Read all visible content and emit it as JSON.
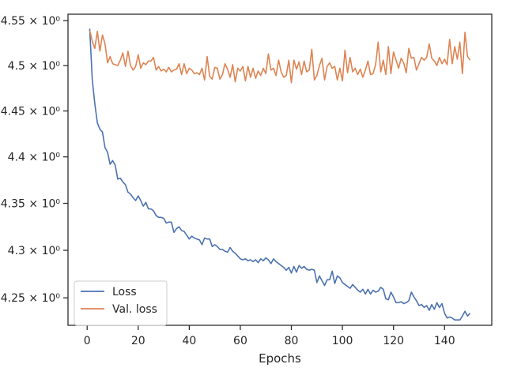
{
  "chart_data": {
    "type": "line",
    "title": "",
    "xlabel": "Epochs",
    "ylabel": "",
    "xlim": [
      -7.5,
      158.5
    ],
    "ylim": [
      4.2214,
      4.5572
    ],
    "log_y": true,
    "grid": false,
    "legend_placement": "lower-left",
    "x_ticks": [
      {
        "value": 0,
        "label": "0"
      },
      {
        "value": 20,
        "label": "20"
      },
      {
        "value": 40,
        "label": "40"
      },
      {
        "value": 60,
        "label": "60"
      },
      {
        "value": 80,
        "label": "80"
      },
      {
        "value": 100,
        "label": "100"
      },
      {
        "value": 120,
        "label": "120"
      },
      {
        "value": 140,
        "label": "140"
      }
    ],
    "y_ticks": [
      {
        "value": 4.25,
        "label": "4.25 × 10⁰"
      },
      {
        "value": 4.3,
        "label": "4.3 × 10⁰"
      },
      {
        "value": 4.35,
        "label": "4.35 × 10⁰"
      },
      {
        "value": 4.4,
        "label": "4.4 × 10⁰"
      },
      {
        "value": 4.45,
        "label": "4.45 × 10⁰"
      },
      {
        "value": 4.5,
        "label": "4.5 × 10⁰"
      },
      {
        "value": 4.55,
        "label": "4.55 × 10⁰"
      }
    ],
    "series": [
      {
        "name": "Loss",
        "color": "#4c72b0",
        "x": [
          1,
          2,
          3,
          4,
          5,
          6,
          7,
          8,
          9,
          10,
          11,
          12,
          13,
          14,
          15,
          16,
          17,
          18,
          19,
          20,
          21,
          22,
          23,
          24,
          25,
          26,
          27,
          28,
          29,
          30,
          31,
          32,
          33,
          34,
          35,
          36,
          37,
          38,
          39,
          40,
          41,
          42,
          43,
          44,
          45,
          46,
          47,
          48,
          49,
          50,
          51,
          52,
          53,
          54,
          55,
          56,
          57,
          58,
          59,
          60,
          61,
          62,
          63,
          64,
          65,
          66,
          67,
          68,
          69,
          70,
          71,
          72,
          73,
          74,
          75,
          76,
          77,
          78,
          79,
          80,
          81,
          82,
          83,
          84,
          85,
          86,
          87,
          88,
          89,
          90,
          91,
          92,
          93,
          94,
          95,
          96,
          97,
          98,
          99,
          100,
          101,
          102,
          103,
          104,
          105,
          106,
          107,
          108,
          109,
          110,
          111,
          112,
          113,
          114,
          115,
          116,
          117,
          118,
          119,
          120,
          121,
          122,
          123,
          124,
          125,
          126,
          127,
          128,
          129,
          130,
          131,
          132,
          133,
          134,
          135,
          136,
          137,
          138,
          139,
          140,
          141,
          142,
          143,
          144,
          145,
          146,
          147,
          148,
          149,
          150
        ],
        "values": [
          4.541,
          4.485,
          4.458,
          4.437,
          4.43,
          4.427,
          4.41,
          4.405,
          4.392,
          4.396,
          4.391,
          4.376,
          4.377,
          4.373,
          4.37,
          4.362,
          4.36,
          4.356,
          4.353,
          4.358,
          4.353,
          4.347,
          4.351,
          4.344,
          4.344,
          4.342,
          4.337,
          4.335,
          4.335,
          4.334,
          4.329,
          4.33,
          4.33,
          4.319,
          4.323,
          4.325,
          4.321,
          4.32,
          4.316,
          4.312,
          4.315,
          4.313,
          4.312,
          4.311,
          4.306,
          4.313,
          4.312,
          4.312,
          4.304,
          4.306,
          4.304,
          4.301,
          4.301,
          4.299,
          4.298,
          4.303,
          4.299,
          4.297,
          4.294,
          4.291,
          4.29,
          4.291,
          4.289,
          4.29,
          4.288,
          4.29,
          4.287,
          4.291,
          4.289,
          4.292,
          4.29,
          4.286,
          4.291,
          4.288,
          4.286,
          4.284,
          4.282,
          4.279,
          4.282,
          4.276,
          4.283,
          4.277,
          4.284,
          4.281,
          4.283,
          4.28,
          4.279,
          4.28,
          4.279,
          4.266,
          4.273,
          4.268,
          4.263,
          4.269,
          4.269,
          4.278,
          4.265,
          4.273,
          4.271,
          4.266,
          4.264,
          4.262,
          4.26,
          4.264,
          4.261,
          4.258,
          4.256,
          4.259,
          4.254,
          4.259,
          4.254,
          4.258,
          4.256,
          4.257,
          4.261,
          4.259,
          4.249,
          4.248,
          4.256,
          4.251,
          4.245,
          4.245,
          4.246,
          4.244,
          4.245,
          4.247,
          4.256,
          4.251,
          4.247,
          4.242,
          4.243,
          4.24,
          4.242,
          4.237,
          4.243,
          4.238,
          4.245,
          4.24,
          4.244,
          4.234,
          4.229,
          4.23,
          4.229,
          4.227,
          4.227,
          4.227,
          4.231,
          4.236,
          4.231,
          4.234
        ]
      },
      {
        "name": "Val. loss",
        "color": "#dd8452",
        "x": [
          1,
          2,
          3,
          4,
          5,
          6,
          7,
          8,
          9,
          10,
          11,
          12,
          13,
          14,
          15,
          16,
          17,
          18,
          19,
          20,
          21,
          22,
          23,
          24,
          25,
          26,
          27,
          28,
          29,
          30,
          31,
          32,
          33,
          34,
          35,
          36,
          37,
          38,
          39,
          40,
          41,
          42,
          43,
          44,
          45,
          46,
          47,
          48,
          49,
          50,
          51,
          52,
          53,
          54,
          55,
          56,
          57,
          58,
          59,
          60,
          61,
          62,
          63,
          64,
          65,
          66,
          67,
          68,
          69,
          70,
          71,
          72,
          73,
          74,
          75,
          76,
          77,
          78,
          79,
          80,
          81,
          82,
          83,
          84,
          85,
          86,
          87,
          88,
          89,
          90,
          91,
          92,
          93,
          94,
          95,
          96,
          97,
          98,
          99,
          100,
          101,
          102,
          103,
          104,
          105,
          106,
          107,
          108,
          109,
          110,
          111,
          112,
          113,
          114,
          115,
          116,
          117,
          118,
          119,
          120,
          121,
          122,
          123,
          124,
          125,
          126,
          127,
          128,
          129,
          130,
          131,
          132,
          133,
          134,
          135,
          136,
          137,
          138,
          139,
          140,
          141,
          142,
          143,
          144,
          145,
          146,
          147,
          148,
          149,
          150
        ],
        "values": [
          4.539,
          4.527,
          4.519,
          4.538,
          4.516,
          4.534,
          4.524,
          4.503,
          4.51,
          4.502,
          4.501,
          4.5,
          4.506,
          4.514,
          4.499,
          4.516,
          4.5,
          4.495,
          4.499,
          4.512,
          4.497,
          4.503,
          4.501,
          4.505,
          4.505,
          4.509,
          4.495,
          4.499,
          4.494,
          4.496,
          4.493,
          4.498,
          4.493,
          4.495,
          4.496,
          4.502,
          4.49,
          4.502,
          4.491,
          4.497,
          4.495,
          4.491,
          4.492,
          4.49,
          4.497,
          4.484,
          4.51,
          4.488,
          4.485,
          4.498,
          4.497,
          4.485,
          4.49,
          4.502,
          4.496,
          4.487,
          4.501,
          4.482,
          4.497,
          4.494,
          4.499,
          4.483,
          4.499,
          4.487,
          4.497,
          4.486,
          4.494,
          4.489,
          4.497,
          4.491,
          4.513,
          4.495,
          4.497,
          4.489,
          4.506,
          4.493,
          4.487,
          4.489,
          4.506,
          4.481,
          4.506,
          4.496,
          4.504,
          4.49,
          4.505,
          4.493,
          4.495,
          4.518,
          4.484,
          4.489,
          4.5,
          4.508,
          4.484,
          4.499,
          4.503,
          4.497,
          4.499,
          4.484,
          4.497,
          4.483,
          4.517,
          4.492,
          4.509,
          4.493,
          4.497,
          4.49,
          4.496,
          4.487,
          4.495,
          4.505,
          4.49,
          4.491,
          4.501,
          4.526,
          4.493,
          4.506,
          4.49,
          4.521,
          4.491,
          4.515,
          4.506,
          4.497,
          4.508,
          4.503,
          4.492,
          4.519,
          4.508,
          4.509,
          4.495,
          4.502,
          4.509,
          4.506,
          4.509,
          4.524,
          4.508,
          4.505,
          4.5,
          4.509,
          4.502,
          4.507,
          4.501,
          4.529,
          4.502,
          4.521,
          4.507,
          4.526,
          4.491,
          4.537,
          4.51,
          4.506
        ]
      }
    ]
  }
}
